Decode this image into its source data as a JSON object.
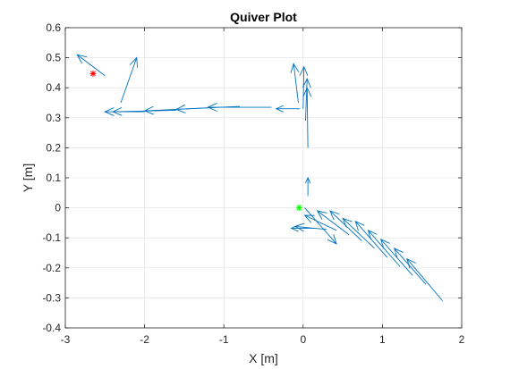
{
  "chart_data": {
    "type": "quiver",
    "title": "Quiver Plot",
    "xlabel": "X [m]",
    "ylabel": "Y [m]",
    "xlim": [
      -3,
      2
    ],
    "ylim": [
      -0.4,
      0.6
    ],
    "xticks": [
      -3,
      -2,
      -1,
      0,
      1,
      2
    ],
    "yticks": [
      -0.4,
      -0.3,
      -0.2,
      -0.1,
      0,
      0.1,
      0.2,
      0.3,
      0.4,
      0.5,
      0.6
    ],
    "xtick_labels": [
      "-3",
      "-2",
      "-1",
      "0",
      "1",
      "2"
    ],
    "ytick_labels": [
      "-0.4",
      "-0.3",
      "-0.2",
      "-0.1",
      "0",
      "0.1",
      "0.2",
      "0.3",
      "0.4",
      "0.5",
      "0.6"
    ],
    "grid": true,
    "colors": {
      "arrows": "#0072BD",
      "start_marker": "#00FF00",
      "end_marker": "#FF0000",
      "axes": "#262626",
      "grid": "#DFDFDF"
    },
    "series": [
      {
        "kind": "arrows",
        "vectors": [
          {
            "x": 1.76,
            "y": -0.31,
            "u": -0.45,
            "v": 0.14
          },
          {
            "x": 1.55,
            "y": -0.255,
            "u": -0.4,
            "v": 0.12
          },
          {
            "x": 1.38,
            "y": -0.225,
            "u": -0.4,
            "v": 0.12
          },
          {
            "x": 1.22,
            "y": -0.195,
            "u": -0.4,
            "v": 0.12
          },
          {
            "x": 1.06,
            "y": -0.165,
            "u": -0.4,
            "v": 0.12
          },
          {
            "x": 0.9,
            "y": -0.135,
            "u": -0.4,
            "v": 0.1
          },
          {
            "x": 0.74,
            "y": -0.11,
            "u": -0.4,
            "v": 0.1
          },
          {
            "x": 0.58,
            "y": -0.09,
            "u": -0.4,
            "v": 0.08
          },
          {
            "x": 0.42,
            "y": -0.075,
            "u": -0.4,
            "v": 0.05
          },
          {
            "x": 0.3,
            "y": -0.072,
            "u": -0.4,
            "v": 0.01
          },
          {
            "x": 0.15,
            "y": -0.068,
            "u": -0.3,
            "v": 0.0
          },
          {
            "x": 0.02,
            "y": 0.0,
            "u": 0.4,
            "v": -0.12
          },
          {
            "x": 0.06,
            "y": 0.04,
            "u": 0.0,
            "v": 0.06
          },
          {
            "x": 0.06,
            "y": 0.2,
            "u": -0.01,
            "v": 0.2
          },
          {
            "x": 0.03,
            "y": 0.29,
            "u": 0.02,
            "v": 0.14
          },
          {
            "x": 0.0,
            "y": 0.33,
            "u": 0.01,
            "v": 0.14
          },
          {
            "x": -0.06,
            "y": 0.35,
            "u": -0.06,
            "v": 0.13
          },
          {
            "x": -0.04,
            "y": 0.33,
            "u": -0.3,
            "v": 0.0
          },
          {
            "x": -0.4,
            "y": 0.335,
            "u": -0.8,
            "v": 0.0
          },
          {
            "x": -0.8,
            "y": 0.338,
            "u": -0.8,
            "v": -0.01
          },
          {
            "x": -1.2,
            "y": 0.333,
            "u": -0.8,
            "v": -0.01
          },
          {
            "x": -1.6,
            "y": 0.325,
            "u": -0.8,
            "v": -0.005
          },
          {
            "x": -2.0,
            "y": 0.32,
            "u": -0.5,
            "v": 0.0
          },
          {
            "x": -2.3,
            "y": 0.35,
            "u": 0.2,
            "v": 0.15
          },
          {
            "x": -2.5,
            "y": 0.44,
            "u": -0.35,
            "v": 0.07
          }
        ]
      },
      {
        "kind": "marker",
        "name": "",
        "marker": "*",
        "color": "#00FF00",
        "x": -0.05,
        "y": 0.0
      },
      {
        "kind": "marker",
        "name": "",
        "marker": "*",
        "color": "#FF0000",
        "x": -2.65,
        "y": 0.447
      }
    ]
  }
}
